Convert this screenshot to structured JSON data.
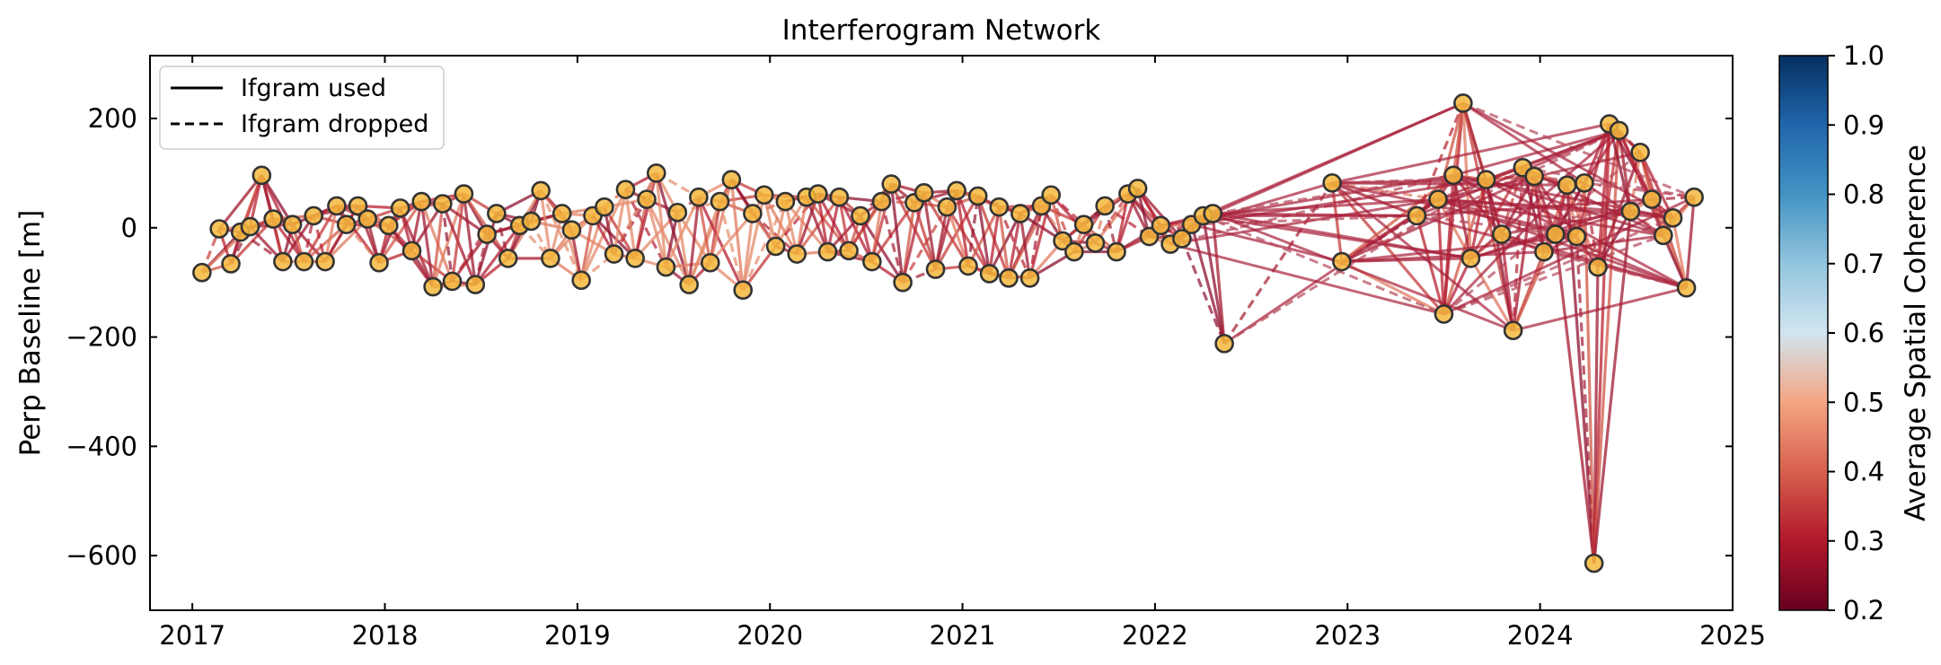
{
  "chart_data": {
    "type": "scatter",
    "title": "Interferogram Network",
    "xlabel": "",
    "ylabel": "Perp Baseline [m]",
    "xlim": [
      2016.78,
      2025.0
    ],
    "ylim": [
      -700,
      315
    ],
    "x_ticks": [
      "2017",
      "2018",
      "2019",
      "2020",
      "2021",
      "2022",
      "2023",
      "2024",
      "2025"
    ],
    "y_ticks": [
      "200",
      "0",
      "−200",
      "−400",
      "−600"
    ],
    "legend": {
      "position": "upper-left",
      "entries": [
        {
          "label": "Ifgram used",
          "style": "solid"
        },
        {
          "label": "Ifgram dropped",
          "style": "dashed"
        }
      ]
    },
    "colorbar": {
      "label": "Average Spatial Coherence",
      "range": [
        0.2,
        1.0
      ],
      "ticks": [
        "1.0",
        "0.9",
        "0.8",
        "0.7",
        "0.6",
        "0.5",
        "0.4",
        "0.3",
        "0.2"
      ],
      "colormap": "RdBu",
      "colors": [
        "#67001f",
        "#b2182b",
        "#d6604d",
        "#f4a582",
        "#d1e5f0",
        "#92c5de",
        "#4393c3",
        "#2166ac",
        "#053061"
      ]
    },
    "marker_color": "#f5b83d",
    "marker_edge_color": "#333333",
    "acquisitions": [
      [
        2017.05,
        -82
      ],
      [
        2017.14,
        -2
      ],
      [
        2017.2,
        -66
      ],
      [
        2017.25,
        -8
      ],
      [
        2017.3,
        2
      ],
      [
        2017.36,
        96
      ],
      [
        2017.42,
        16
      ],
      [
        2017.47,
        -62
      ],
      [
        2017.52,
        6
      ],
      [
        2017.58,
        -62
      ],
      [
        2017.63,
        22
      ],
      [
        2017.69,
        -62
      ],
      [
        2017.75,
        40
      ],
      [
        2017.8,
        6
      ],
      [
        2017.86,
        40
      ],
      [
        2017.91,
        16
      ],
      [
        2017.97,
        -64
      ],
      [
        2018.02,
        4
      ],
      [
        2018.08,
        36
      ],
      [
        2018.14,
        -42
      ],
      [
        2018.19,
        48
      ],
      [
        2018.25,
        -108
      ],
      [
        2018.3,
        44
      ],
      [
        2018.35,
        -98
      ],
      [
        2018.41,
        62
      ],
      [
        2018.47,
        -104
      ],
      [
        2018.53,
        -12
      ],
      [
        2018.58,
        26
      ],
      [
        2018.64,
        -56
      ],
      [
        2018.7,
        4
      ],
      [
        2018.76,
        12
      ],
      [
        2018.81,
        68
      ],
      [
        2018.86,
        -56
      ],
      [
        2018.92,
        26
      ],
      [
        2018.97,
        -4
      ],
      [
        2019.02,
        -96
      ],
      [
        2019.08,
        22
      ],
      [
        2019.14,
        38
      ],
      [
        2019.19,
        -48
      ],
      [
        2019.25,
        70
      ],
      [
        2019.3,
        -56
      ],
      [
        2019.36,
        52
      ],
      [
        2019.41,
        100
      ],
      [
        2019.46,
        -72
      ],
      [
        2019.52,
        28
      ],
      [
        2019.58,
        -104
      ],
      [
        2019.63,
        56
      ],
      [
        2019.69,
        -64
      ],
      [
        2019.74,
        48
      ],
      [
        2019.8,
        88
      ],
      [
        2019.86,
        -114
      ],
      [
        2019.91,
        26
      ],
      [
        2019.97,
        60
      ],
      [
        2020.03,
        -34
      ],
      [
        2020.08,
        48
      ],
      [
        2020.14,
        -48
      ],
      [
        2020.19,
        56
      ],
      [
        2020.25,
        62
      ],
      [
        2020.3,
        -44
      ],
      [
        2020.36,
        56
      ],
      [
        2020.41,
        -42
      ],
      [
        2020.47,
        22
      ],
      [
        2020.53,
        -62
      ],
      [
        2020.58,
        48
      ],
      [
        2020.63,
        80
      ],
      [
        2020.69,
        -100
      ],
      [
        2020.75,
        46
      ],
      [
        2020.8,
        64
      ],
      [
        2020.86,
        -76
      ],
      [
        2020.92,
        38
      ],
      [
        2020.97,
        68
      ],
      [
        2021.03,
        -70
      ],
      [
        2021.08,
        58
      ],
      [
        2021.14,
        -84
      ],
      [
        2021.19,
        38
      ],
      [
        2021.24,
        -92
      ],
      [
        2021.3,
        26
      ],
      [
        2021.35,
        -92
      ],
      [
        2021.41,
        40
      ],
      [
        2021.46,
        60
      ],
      [
        2021.52,
        -24
      ],
      [
        2021.58,
        -44
      ],
      [
        2021.63,
        6
      ],
      [
        2021.69,
        -28
      ],
      [
        2021.74,
        40
      ],
      [
        2021.8,
        -44
      ],
      [
        2021.86,
        62
      ],
      [
        2021.91,
        72
      ],
      [
        2021.97,
        -16
      ],
      [
        2022.03,
        4
      ],
      [
        2022.08,
        -30
      ],
      [
        2022.14,
        -20
      ],
      [
        2022.19,
        6
      ],
      [
        2022.25,
        22
      ],
      [
        2022.3,
        26
      ],
      [
        2022.36,
        -212
      ],
      [
        2022.92,
        82
      ],
      [
        2022.97,
        -62
      ],
      [
        2023.36,
        22
      ],
      [
        2023.47,
        52
      ],
      [
        2023.5,
        -158
      ],
      [
        2023.55,
        96
      ],
      [
        2023.6,
        228
      ],
      [
        2023.64,
        -56
      ],
      [
        2023.72,
        88
      ],
      [
        2023.8,
        -12
      ],
      [
        2023.86,
        -188
      ],
      [
        2023.91,
        110
      ],
      [
        2023.97,
        94
      ],
      [
        2024.02,
        -44
      ],
      [
        2024.08,
        -12
      ],
      [
        2024.14,
        78
      ],
      [
        2024.19,
        -16
      ],
      [
        2024.23,
        82
      ],
      [
        2024.28,
        -614
      ],
      [
        2024.3,
        -72
      ],
      [
        2024.36,
        190
      ],
      [
        2024.41,
        178
      ],
      [
        2024.47,
        30
      ],
      [
        2024.52,
        138
      ],
      [
        2024.58,
        52
      ],
      [
        2024.64,
        -14
      ],
      [
        2024.69,
        18
      ],
      [
        2024.76,
        -110
      ],
      [
        2024.8,
        56
      ]
    ]
  }
}
